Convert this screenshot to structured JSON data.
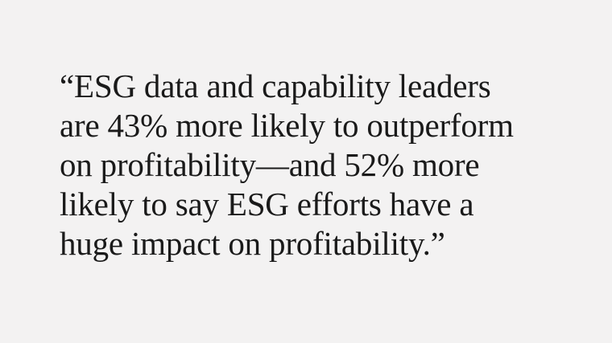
{
  "quote": {
    "lines": [
      "“ESG data and capability leaders",
      "are 43% more likely to outperform",
      "on profitability—and 52% more",
      "likely to say ESG efforts have a",
      "huge impact on profitability.”"
    ]
  },
  "colors": {
    "background": "#f3f2f2",
    "text": "#1a1a1a"
  }
}
